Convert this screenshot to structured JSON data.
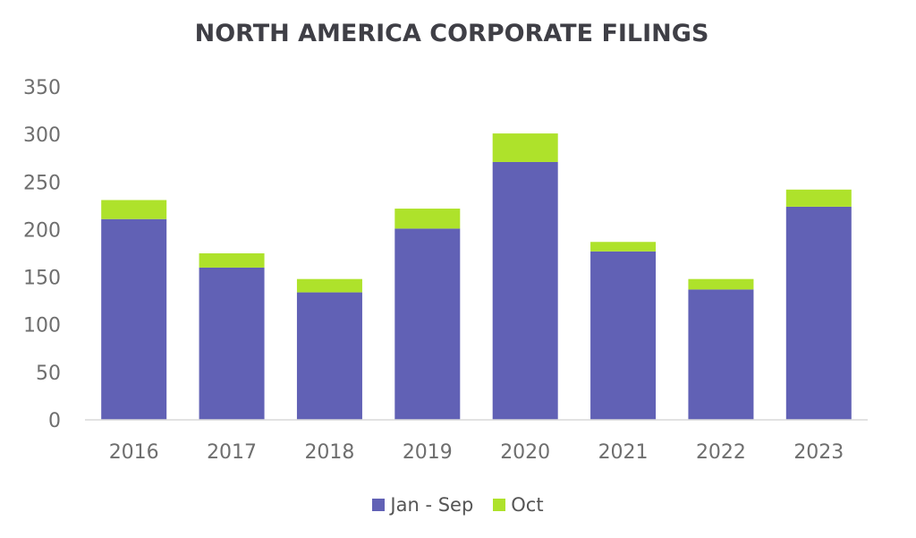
{
  "chart_data": {
    "type": "bar",
    "stacked": true,
    "title": "NORTH AMERICA CORPORATE FILINGS",
    "categories": [
      "2016",
      "2017",
      "2018",
      "2019",
      "2020",
      "2021",
      "2022",
      "2023"
    ],
    "series": [
      {
        "name": "Jan - Sep",
        "color": "#6161b5",
        "values": [
          211,
          160,
          134,
          201,
          271,
          177,
          137,
          224
        ]
      },
      {
        "name": "Oct",
        "color": "#aee22b",
        "values": [
          20,
          15,
          14,
          21,
          30,
          10,
          11,
          18
        ]
      }
    ],
    "yticks": [
      "0",
      "50",
      "100",
      "150",
      "200",
      "250",
      "300",
      "350"
    ],
    "ylim": [
      0,
      350
    ],
    "grid": false,
    "legend_position": "bottom"
  }
}
